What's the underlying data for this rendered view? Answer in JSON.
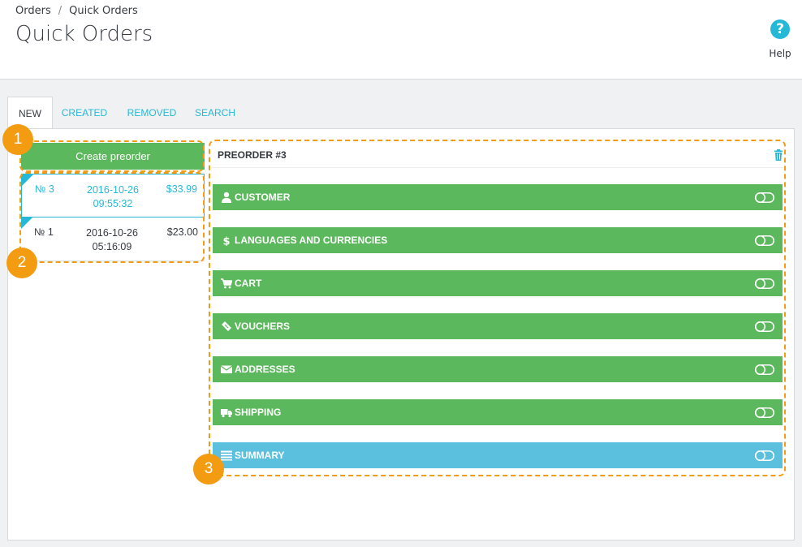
{
  "breadcrumb": {
    "parent": "Orders",
    "separator": "/",
    "current": "Quick Orders"
  },
  "page": {
    "title": "Quick Orders"
  },
  "help": {
    "icon": "question-circle-icon",
    "label": "Help"
  },
  "tabs": [
    {
      "label": "NEW",
      "active": true
    },
    {
      "label": "CREATED",
      "active": false
    },
    {
      "label": "REMOVED",
      "active": false
    },
    {
      "label": "SEARCH",
      "active": false
    }
  ],
  "sidebar": {
    "create_button": "Create preorder",
    "orders": [
      {
        "number": "№ 3",
        "date": "2016-10-26",
        "time": "09:55:32",
        "total": "$33.99",
        "active": true
      },
      {
        "number": "№ 1",
        "date": "2016-10-26",
        "time": "05:16:09",
        "total": "$23.00",
        "active": false
      }
    ]
  },
  "preorder": {
    "title": "PREORDER #3",
    "sections": [
      {
        "label": "CUSTOMER",
        "icon": "user-icon"
      },
      {
        "label": "LANGUAGES AND CURRENCIES",
        "icon": "dollar-icon"
      },
      {
        "label": "CART",
        "icon": "cart-icon"
      },
      {
        "label": "VOUCHERS",
        "icon": "ticket-icon"
      },
      {
        "label": "ADDRESSES",
        "icon": "envelope-icon"
      },
      {
        "label": "SHIPPING",
        "icon": "truck-icon"
      },
      {
        "label": "SUMMARY",
        "icon": "list-icon"
      }
    ]
  },
  "annotations": [
    "1",
    "2",
    "3"
  ],
  "colors": {
    "accent": "#25b9d7",
    "success": "#5cb85c",
    "info": "#5bc0de",
    "annotation": "#f39c12"
  }
}
